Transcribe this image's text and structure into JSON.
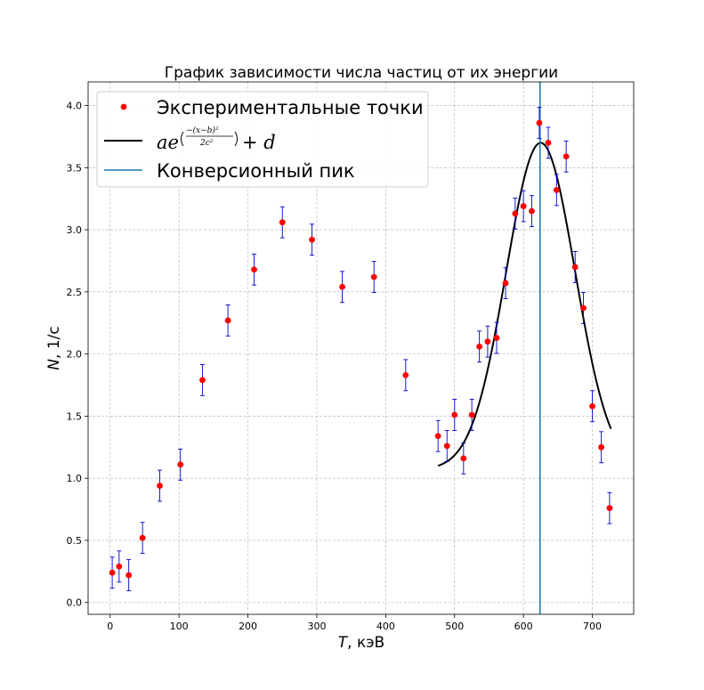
{
  "chart_data": {
    "type": "scatter",
    "title": "График зависимости числа частиц от их энергии",
    "xlabel_var": "T",
    "xlabel_unit": ", кэВ",
    "ylabel_var": "N",
    "ylabel_unit": ", 1/с",
    "xlim": [
      -32,
      760
    ],
    "ylim": [
      -0.095,
      4.19
    ],
    "xticks": [
      0,
      100,
      200,
      300,
      400,
      500,
      600,
      700
    ],
    "yticks": [
      0.0,
      0.5,
      1.0,
      1.5,
      2.0,
      2.5,
      3.0,
      3.5,
      4.0
    ],
    "grid": true,
    "legend_position": "top-left",
    "series": [
      {
        "name": "Экспериментальные точки",
        "kind": "points_with_errorbars",
        "color": "#ff0000",
        "error_color": "#0000cc",
        "x": [
          3,
          13,
          27,
          47,
          72,
          102,
          134,
          171,
          209,
          250,
          293,
          337,
          383,
          429,
          476,
          489,
          500,
          513,
          525,
          536,
          548,
          561,
          574,
          588,
          600,
          612,
          623,
          636,
          648,
          662,
          675,
          687,
          700,
          713,
          725
        ],
        "y": [
          0.24,
          0.29,
          0.22,
          0.52,
          0.94,
          1.11,
          1.79,
          2.27,
          2.68,
          3.06,
          2.92,
          2.54,
          2.62,
          1.83,
          1.34,
          1.26,
          1.51,
          1.16,
          1.51,
          2.06,
          2.1,
          2.13,
          2.57,
          3.13,
          3.19,
          3.15,
          3.86,
          3.7,
          3.32,
          3.59,
          2.7,
          2.37,
          1.58,
          1.25,
          0.76
        ],
        "yerr": 0.125
      },
      {
        "name": "a e^((−(x−b)²)/(2c²)) + d",
        "kind": "gaussian_fit",
        "color": "#000000",
        "params": {
          "a": 2.63,
          "b": 625,
          "c": 50,
          "d": 1.07
        },
        "x_range": [
          476,
          727
        ]
      },
      {
        "name": "Конверсионный пик",
        "kind": "vertical_line",
        "color": "#1f77b4",
        "x": 624
      }
    ],
    "legend": {
      "points_label": "Экспериментальные точки",
      "peak_label": "Конверсионный пик"
    }
  }
}
